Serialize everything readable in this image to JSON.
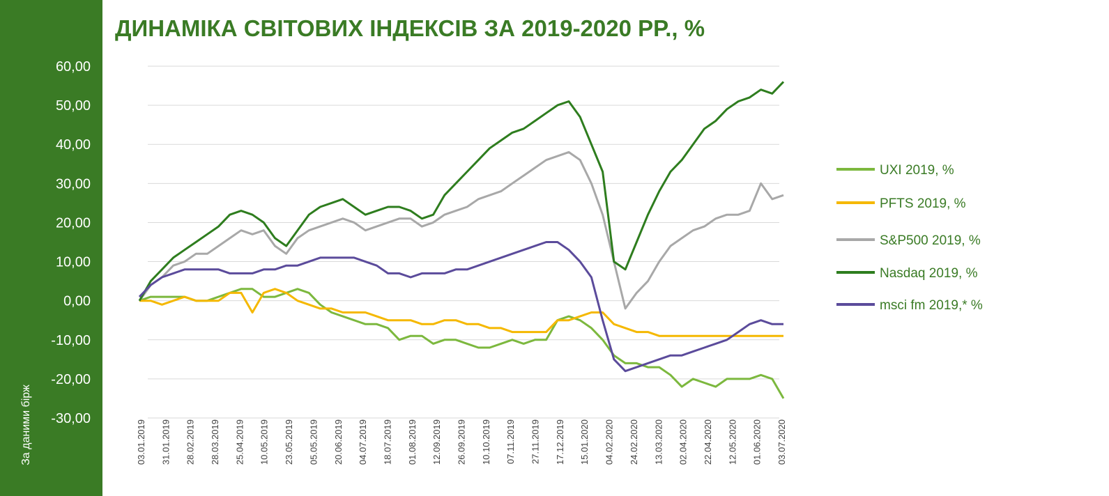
{
  "title": "ДИНАМІКА СВІТОВИХ ІНДЕКСІВ ЗА 2019-2020 РР., %",
  "source_note": "За даними бірж",
  "chart_data": {
    "type": "line",
    "title": "ДИНАМІКА СВІТОВИХ ІНДЕКСІВ ЗА 2019-2020 РР., %",
    "ylim": [
      -30,
      60
    ],
    "y_ticks": [
      "60,00",
      "50,00",
      "40,00",
      "30,00",
      "20,00",
      "10,00",
      "0,00",
      "-10,00",
      "-20,00",
      "-30,00"
    ],
    "x_ticks": [
      "03.01.2019",
      "31.01.2019",
      "28.02.2019",
      "28.03.2019",
      "25.04.2019",
      "10.05.2019",
      "23.05.2019",
      "05.05.2019",
      "20.06.2019",
      "04.07.2019",
      "18.07.2019",
      "01.08.2019",
      "12.09.2019",
      "26.09.2019",
      "10.10.2019",
      "07.11.2019",
      "27.11.2019",
      "17.12.2019",
      "15.01.2020",
      "04.02.2020",
      "24.02.2020",
      "13.03.2020",
      "02.04.2020",
      "22.04.2020",
      "12.05.2020",
      "01.06.2020",
      "03.07.2020"
    ],
    "grid": true,
    "legend_position": "right",
    "series": [
      {
        "name": "UXI 2019, %",
        "color": "#7cb83e",
        "values": [
          0,
          1,
          1,
          1,
          1,
          0,
          0,
          1,
          2,
          3,
          3,
          1,
          1,
          2,
          3,
          2,
          -1,
          -3,
          -4,
          -5,
          -6,
          -6,
          -7,
          -10,
          -9,
          -9,
          -11,
          -10,
          -10,
          -11,
          -12,
          -12,
          -11,
          -10,
          -11,
          -10,
          -10,
          -5,
          -4,
          -5,
          -7,
          -10,
          -14,
          -16,
          -16,
          -17,
          -17,
          -19,
          -22,
          -20,
          -21,
          -22,
          -20,
          -20,
          -20,
          -19,
          -20,
          -25
        ]
      },
      {
        "name": "PFTS 2019, %",
        "color": "#f5b800",
        "values": [
          0,
          0,
          -1,
          0,
          1,
          0,
          0,
          0,
          2,
          2,
          -3,
          2,
          3,
          2,
          0,
          -1,
          -2,
          -2,
          -3,
          -3,
          -3,
          -4,
          -5,
          -5,
          -5,
          -6,
          -6,
          -5,
          -5,
          -6,
          -6,
          -7,
          -7,
          -8,
          -8,
          -8,
          -8,
          -5,
          -5,
          -4,
          -3,
          -3,
          -6,
          -7,
          -8,
          -8,
          -9,
          -9,
          -9,
          -9,
          -9,
          -9,
          -9,
          -9,
          -9,
          -9,
          -9,
          -9
        ]
      },
      {
        "name": "S&P500 2019, %",
        "color": "#a8a8a8",
        "values": [
          0,
          4,
          6,
          9,
          10,
          12,
          12,
          14,
          16,
          18,
          17,
          18,
          14,
          12,
          16,
          18,
          19,
          20,
          21,
          20,
          18,
          19,
          20,
          21,
          21,
          19,
          20,
          22,
          23,
          24,
          26,
          27,
          28,
          30,
          32,
          34,
          36,
          37,
          38,
          36,
          30,
          22,
          10,
          -2,
          2,
          5,
          10,
          14,
          16,
          18,
          19,
          21,
          22,
          22,
          23,
          30,
          26,
          27
        ]
      },
      {
        "name": "Nasdaq 2019, %",
        "color": "#2e7d1e",
        "values": [
          0,
          5,
          8,
          11,
          13,
          15,
          17,
          19,
          22,
          23,
          22,
          20,
          16,
          14,
          18,
          22,
          24,
          25,
          26,
          24,
          22,
          23,
          24,
          24,
          23,
          21,
          22,
          27,
          30,
          33,
          36,
          39,
          41,
          43,
          44,
          46,
          48,
          50,
          51,
          47,
          40,
          33,
          10,
          8,
          15,
          22,
          28,
          33,
          36,
          40,
          44,
          46,
          49,
          51,
          52,
          54,
          53,
          56
        ]
      },
      {
        "name": "msci fm 2019,* %",
        "color": "#5b4b9b",
        "values": [
          1,
          4,
          6,
          7,
          8,
          8,
          8,
          8,
          7,
          7,
          7,
          8,
          8,
          9,
          9,
          10,
          11,
          11,
          11,
          11,
          10,
          9,
          7,
          7,
          6,
          7,
          7,
          7,
          8,
          8,
          9,
          10,
          11,
          12,
          13,
          14,
          15,
          15,
          13,
          10,
          6,
          -5,
          -15,
          -18,
          -17,
          -16,
          -15,
          -14,
          -14,
          -13,
          -12,
          -11,
          -10,
          -8,
          -6,
          -5,
          -6,
          -6
        ]
      }
    ]
  }
}
